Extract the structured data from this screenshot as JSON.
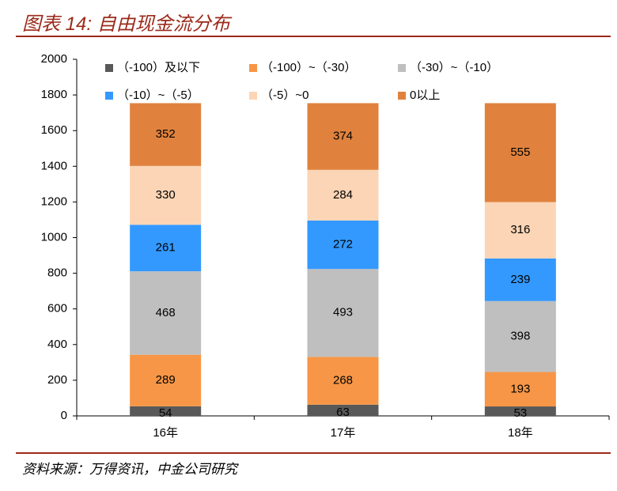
{
  "chart_data": {
    "type": "stacked_bar",
    "title": "图表 14:  自由现金流分布",
    "source": "资料来源：万得资讯，中金公司研究",
    "categories": [
      "16年",
      "17年",
      "18年"
    ],
    "series": [
      {
        "name": "（-100）及以下",
        "color": "#595959",
        "values": [
          54,
          63,
          53
        ]
      },
      {
        "name": "（-100）~（-30）",
        "color": "#f79646",
        "values": [
          289,
          268,
          193
        ]
      },
      {
        "name": "（-30）~（-10）",
        "color": "#bfbfbf",
        "values": [
          468,
          493,
          398
        ]
      },
      {
        "name": "（-10）~（-5）",
        "color": "#3399ff",
        "values": [
          261,
          272,
          239
        ]
      },
      {
        "name": "（-5）~0",
        "color": "#fbd5b5",
        "values": [
          330,
          284,
          316
        ]
      },
      {
        "name": "0以上",
        "color": "#e0823d",
        "values": [
          352,
          374,
          555
        ]
      }
    ],
    "ylim": [
      0,
      2000
    ],
    "yticks": [
      0,
      200,
      400,
      600,
      800,
      1000,
      1200,
      1400,
      1600,
      1800,
      2000
    ],
    "legend": "top"
  }
}
